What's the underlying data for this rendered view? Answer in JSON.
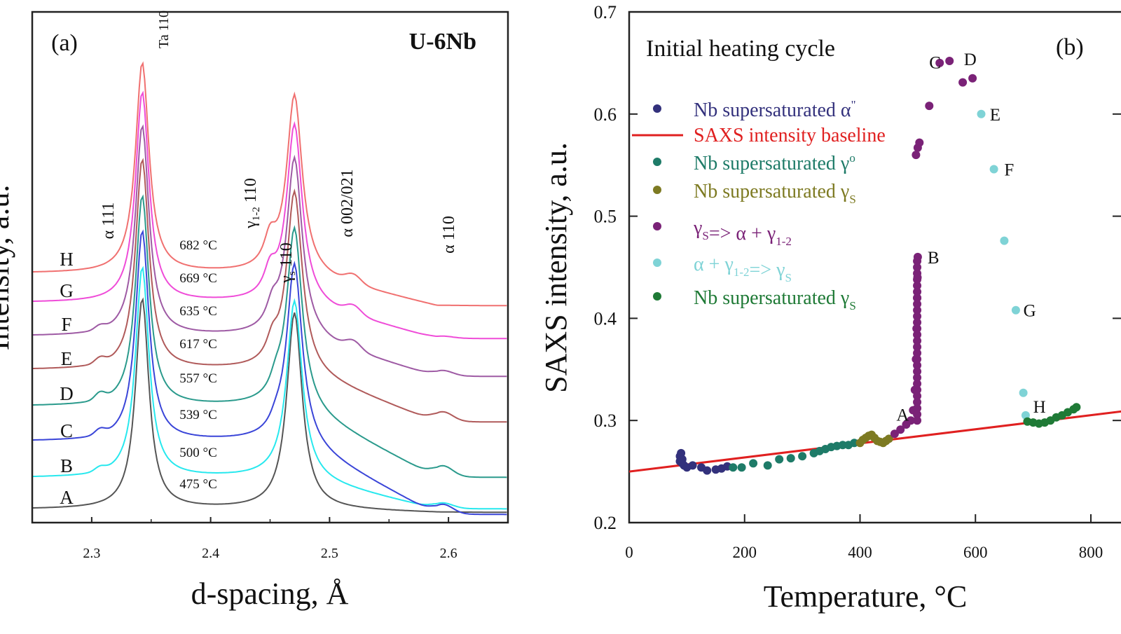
{
  "colors": {
    "A": "#555555",
    "B": "#27e8ee",
    "C": "#3a45d8",
    "D": "#2a9a8c",
    "E": "#b05a5a",
    "F": "#9e5aa4",
    "G": "#ef4cd8",
    "H": "#f07070",
    "baseline": "#e02020",
    "alpha_dd": "#33317c",
    "gamma0": "#1e7b68",
    "gammaS1": "#7d7a22",
    "transform": "#7a2277",
    "reverse": "#7fd3d6",
    "gammaS2": "#1f7a36"
  },
  "chart_data": [
    {
      "type": "line",
      "panel": "(a)",
      "alloy": "U-6Nb",
      "xlabel": "d-spacing, Å",
      "ylabel": "Intensity, a.u.",
      "xlim": [
        2.25,
        2.65
      ],
      "x_ticks": [
        "2.3",
        "2.4",
        "2.5",
        "2.6"
      ],
      "series": [
        {
          "name": "A",
          "temperature": "475 °C",
          "color_key": "A"
        },
        {
          "name": "B",
          "temperature": "500 °C",
          "color_key": "B"
        },
        {
          "name": "C",
          "temperature": "539 °C",
          "color_key": "C"
        },
        {
          "name": "D",
          "temperature": "557 °C",
          "color_key": "D"
        },
        {
          "name": "E",
          "temperature": "617 °C",
          "color_key": "E"
        },
        {
          "name": "F",
          "temperature": "635 °C",
          "color_key": "F"
        },
        {
          "name": "G",
          "temperature": "669 °C",
          "color_key": "G"
        },
        {
          "name": "H",
          "temperature": "682 °C",
          "color_key": "H"
        }
      ],
      "peak_labels": {
        "ta110": "Ta 110",
        "a111": "α 111",
        "g12": "γ",
        "g12_sub": "1-2",
        "g12_hkl": " 110",
        "gs": "γ",
        "gs_sub": "s",
        "gs_hkl": " 110",
        "a002": "α 002/021",
        "a110": "α 110"
      }
    },
    {
      "type": "scatter",
      "panel": "(b)",
      "annotation": "Initial heating cycle",
      "xlabel": "Temperature, °C",
      "ylabel": "SAXS intensity, a.u.",
      "xlim": [
        0,
        800
      ],
      "ylim": [
        0.2,
        0.7
      ],
      "x_ticks": [
        "0",
        "200",
        "400",
        "600",
        "800"
      ],
      "y_ticks": [
        "0.2",
        "0.3",
        "0.4",
        "0.5",
        "0.6",
        "0.7"
      ],
      "legend": [
        {
          "key": "alpha_dd",
          "label": "Nb supersaturated α",
          "sup": "\""
        },
        {
          "key": "baseline",
          "label": "SAXS intensity baseline",
          "line": true
        },
        {
          "key": "gamma0",
          "label": "Nb supersaturated γ",
          "sup": "o"
        },
        {
          "key": "gammaS1",
          "label": "Nb supersaturated γ",
          "sub": "S"
        },
        {
          "key": "transform",
          "label": "γ",
          "sub": "S",
          "label2": "=> α + γ",
          "sub2": "1-2"
        },
        {
          "key": "reverse",
          "label": "α + γ",
          "sub": "1-2",
          "label2": "=> γ",
          "sub2": "S"
        },
        {
          "key": "gammaS2",
          "label": "Nb supersaturated γ",
          "sub": "S"
        }
      ],
      "baseline": {
        "x": [
          0,
          800
        ],
        "y": [
          0.25,
          0.306
        ]
      },
      "series": [
        {
          "key": "alpha_dd",
          "points": [
            [
              88,
              0.26
            ],
            [
              88,
              0.265
            ],
            [
              90,
              0.268
            ],
            [
              92,
              0.258
            ],
            [
              92,
              0.262
            ],
            [
              95,
              0.256
            ],
            [
              100,
              0.254
            ],
            [
              110,
              0.256
            ],
            [
              125,
              0.254
            ],
            [
              135,
              0.251
            ],
            [
              150,
              0.252
            ],
            [
              160,
              0.253
            ],
            [
              170,
              0.255
            ]
          ]
        },
        {
          "key": "gamma0",
          "points": [
            [
              180,
              0.254
            ],
            [
              195,
              0.254
            ],
            [
              215,
              0.258
            ],
            [
              240,
              0.256
            ],
            [
              260,
              0.262
            ],
            [
              280,
              0.263
            ],
            [
              300,
              0.265
            ],
            [
              320,
              0.268
            ],
            [
              330,
              0.27
            ],
            [
              340,
              0.272
            ],
            [
              350,
              0.274
            ],
            [
              360,
              0.275
            ],
            [
              370,
              0.276
            ],
            [
              380,
              0.276
            ],
            [
              390,
              0.278
            ]
          ]
        },
        {
          "key": "gammaS1",
          "points": [
            [
              400,
              0.278
            ],
            [
              405,
              0.281
            ],
            [
              410,
              0.283
            ],
            [
              415,
              0.285
            ],
            [
              420,
              0.286
            ],
            [
              425,
              0.283
            ],
            [
              430,
              0.28
            ],
            [
              435,
              0.279
            ],
            [
              440,
              0.278
            ],
            [
              445,
              0.28
            ],
            [
              450,
              0.282
            ]
          ]
        },
        {
          "key": "transform",
          "points": [
            [
              460,
              0.287
            ],
            [
              470,
              0.291
            ],
            [
              480,
              0.296
            ],
            [
              488,
              0.3
            ],
            [
              492,
              0.31
            ],
            [
              495,
              0.33
            ],
            [
              497,
              0.36
            ],
            [
              498,
              0.39
            ],
            [
              499,
              0.42
            ],
            [
              499.5,
              0.44
            ],
            [
              500,
              0.46
            ],
            [
              497,
              0.56
            ],
            [
              500,
              0.567
            ],
            [
              503,
              0.572
            ],
            [
              520,
              0.608
            ],
            [
              538,
              0.65
            ],
            [
              555,
              0.652
            ],
            [
              578,
              0.631
            ],
            [
              595,
              0.635
            ]
          ]
        },
        {
          "key": "reverse",
          "points": [
            [
              610,
              0.6
            ],
            [
              632,
              0.546
            ],
            [
              650,
              0.476
            ],
            [
              670,
              0.408
            ],
            [
              683,
              0.327
            ],
            [
              687,
              0.305
            ]
          ]
        },
        {
          "key": "gammaS2",
          "points": [
            [
              690,
              0.299
            ],
            [
              700,
              0.298
            ],
            [
              710,
              0.297
            ],
            [
              720,
              0.298
            ],
            [
              730,
              0.3
            ],
            [
              740,
              0.303
            ],
            [
              750,
              0.305
            ],
            [
              760,
              0.308
            ],
            [
              770,
              0.311
            ],
            [
              775,
              0.313
            ]
          ]
        }
      ],
      "point_labels": [
        {
          "text": "A",
          "x": 463,
          "y": 0.306
        },
        {
          "text": "B",
          "x": 517,
          "y": 0.46
        },
        {
          "text": "C",
          "x": 520,
          "y": 0.651
        },
        {
          "text": "D",
          "x": 580,
          "y": 0.654
        },
        {
          "text": "E",
          "x": 625,
          "y": 0.6
        },
        {
          "text": "F",
          "x": 650,
          "y": 0.546
        },
        {
          "text": "G",
          "x": 683,
          "y": 0.408
        },
        {
          "text": "H",
          "x": 700,
          "y": 0.314
        }
      ]
    }
  ]
}
